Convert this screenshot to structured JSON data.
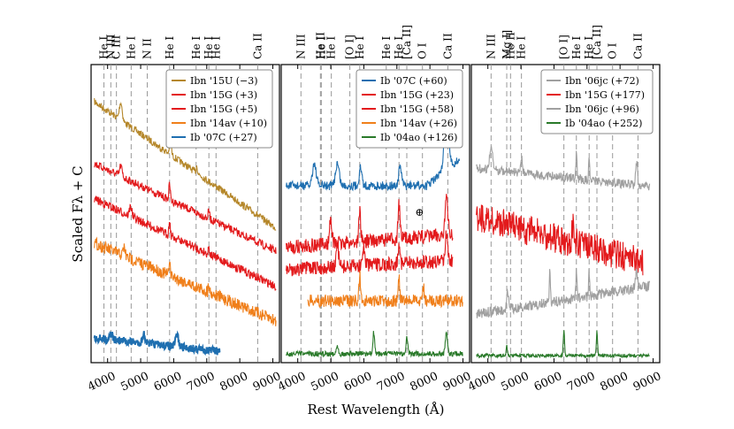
{
  "chart_data": {
    "type": "line",
    "ylabel": "Scaled Fλ + C",
    "xlabel": "Rest Wavelength (Å)",
    "xlim": [
      3500,
      9200
    ],
    "xticks": [
      4000,
      5000,
      6000,
      7000,
      8000,
      9000
    ],
    "xtick_labels": [
      "4000",
      "5000",
      "6000",
      "7000",
      "8000",
      "9000"
    ],
    "grid": false,
    "panels": [
      {
        "id": "left",
        "lines": [
          {
            "label": "He I",
            "wl": 3889
          },
          {
            "label": "N III",
            "wl": 4097
          },
          {
            "label": "C III",
            "wl": 4267
          },
          {
            "label": "He I",
            "wl": 4713
          },
          {
            "label": "N II",
            "wl": 5200
          },
          {
            "label": "He I",
            "wl": 5876
          },
          {
            "label": "He I",
            "wl": 6678
          },
          {
            "label": "He I",
            "wl": 7065
          },
          {
            "label": "He I",
            "wl": 7281
          },
          {
            "label": "Ca II",
            "wl": 8542
          }
        ],
        "legend": [
          {
            "name": "Ibn '15U (−3)",
            "color": "#b5872a"
          },
          {
            "name": "Ibn '15G (+3)",
            "color": "#e31a1c"
          },
          {
            "name": "Ibn '15G (+5)",
            "color": "#e31a1c"
          },
          {
            "name": "Ibn '14av (+10)",
            "color": "#f07f1a"
          },
          {
            "name": "Ib '07C (+27)",
            "color": "#1f6fb0"
          }
        ]
      },
      {
        "id": "middle",
        "lines": [
          {
            "label": "N III",
            "wl": 4097
          },
          {
            "label": "He II",
            "wl": 4686
          },
          {
            "label": "He I",
            "wl": 4713
          },
          {
            "label": "He I",
            "wl": 5016
          },
          {
            "label": "[O I]",
            "wl": 5577
          },
          {
            "label": "He I",
            "wl": 5876
          },
          {
            "label": "He I",
            "wl": 6678
          },
          {
            "label": "He I",
            "wl": 7065
          },
          {
            "label": "[Ca II]",
            "wl": 7300
          },
          {
            "label": "O I",
            "wl": 7774
          },
          {
            "label": "Ca II",
            "wl": 8542
          }
        ],
        "telluric_symbol": "⊕",
        "legend": [
          {
            "name": "Ib '07C (+60)",
            "color": "#1f6fb0"
          },
          {
            "name": "Ibn '15G (+23)",
            "color": "#e31a1c"
          },
          {
            "name": "Ibn '15G (+58)",
            "color": "#e31a1c"
          },
          {
            "name": "Ibn '14av (+26)",
            "color": "#f07f1a"
          },
          {
            "name": "Ib '04ao (+126)",
            "color": "#2a7a2a"
          }
        ]
      },
      {
        "id": "right",
        "lines": [
          {
            "label": "Mg I]",
            "wl": 4571
          },
          {
            "label": "N III",
            "wl": 4097
          },
          {
            "label": "He II",
            "wl": 4686
          },
          {
            "label": "He I",
            "wl": 5016
          },
          {
            "label": "[O I]",
            "wl": 6300
          },
          {
            "label": "He I",
            "wl": 6678
          },
          {
            "label": "He I",
            "wl": 7065
          },
          {
            "label": "[Ca II]",
            "wl": 7300
          },
          {
            "label": "O I",
            "wl": 7774
          },
          {
            "label": "Ca II",
            "wl": 8542
          }
        ],
        "legend": [
          {
            "name": "Ibn '06jc (+72)",
            "color": "#a0a0a0"
          },
          {
            "name": "Ibn '15G (+177)",
            "color": "#e31a1c"
          },
          {
            "name": "Ibn '06jc (+96)",
            "color": "#a0a0a0"
          },
          {
            "name": "Ib '04ao (+252)",
            "color": "#2a7a2a"
          }
        ]
      }
    ]
  }
}
